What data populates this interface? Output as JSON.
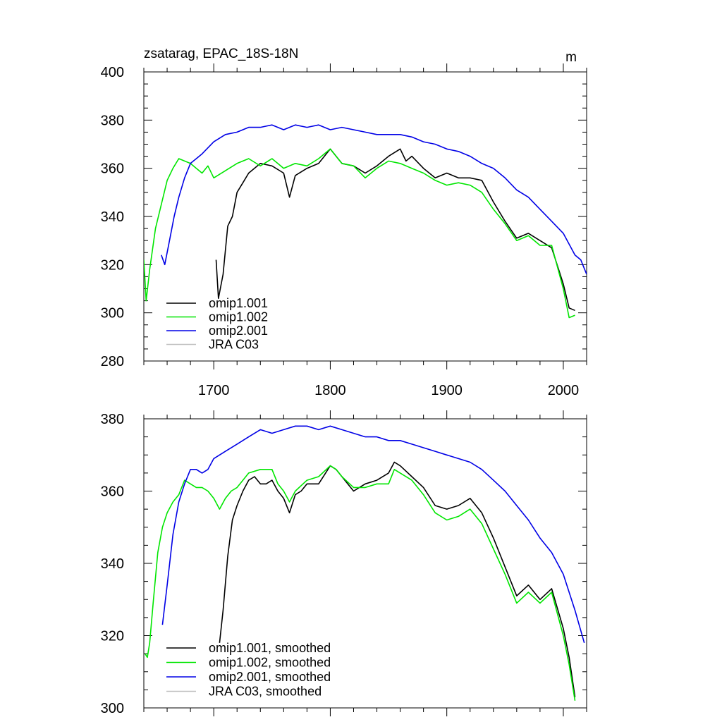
{
  "chart_data": [
    {
      "type": "line",
      "title": "zsatarag, EPAC_18S-18N",
      "units": "m",
      "xlim": [
        1640,
        2020
      ],
      "ylim": [
        280,
        400
      ],
      "x_ticks": [
        1700,
        1800,
        1900,
        2000
      ],
      "x_tick_labels": [
        "1700",
        "1800",
        "1900",
        "2000"
      ],
      "y_ticks": [
        280,
        300,
        320,
        340,
        360,
        380,
        400
      ],
      "y_tick_labels": [
        "280",
        "300",
        "320",
        "340",
        "360",
        "380",
        "400"
      ],
      "legend_position": "bottom-left",
      "series": [
        {
          "name": "omip1.001",
          "color": "#000000",
          "x": [
            1702,
            1704,
            1708,
            1712,
            1716,
            1720,
            1725,
            1730,
            1740,
            1750,
            1760,
            1765,
            1770,
            1780,
            1790,
            1800,
            1810,
            1820,
            1830,
            1840,
            1850,
            1860,
            1865,
            1870,
            1880,
            1890,
            1900,
            1910,
            1920,
            1930,
            1940,
            1950,
            1960,
            1970,
            1980,
            1990,
            2000,
            2005,
            2010
          ],
          "y": [
            322,
            306,
            316,
            336,
            340,
            350,
            354,
            358,
            362,
            361,
            358,
            348,
            357,
            360,
            362,
            368,
            362,
            361,
            358,
            361,
            365,
            368,
            363,
            365,
            360,
            356,
            358,
            356,
            356,
            355,
            346,
            338,
            331,
            333,
            330,
            327,
            312,
            302,
            301
          ]
        },
        {
          "name": "omip1.002",
          "color": "#00e600",
          "x": [
            1640,
            1642,
            1645,
            1650,
            1655,
            1660,
            1665,
            1670,
            1675,
            1680,
            1685,
            1690,
            1695,
            1700,
            1710,
            1720,
            1730,
            1740,
            1750,
            1760,
            1770,
            1780,
            1790,
            1800,
            1810,
            1820,
            1830,
            1840,
            1850,
            1860,
            1870,
            1880,
            1890,
            1900,
            1910,
            1920,
            1930,
            1940,
            1950,
            1960,
            1970,
            1980,
            1990,
            2000,
            2005,
            2010
          ],
          "y": [
            322,
            305,
            318,
            335,
            345,
            355,
            360,
            364,
            363,
            362,
            360,
            358,
            361,
            356,
            359,
            362,
            364,
            361,
            364,
            360,
            362,
            361,
            364,
            368,
            362,
            361,
            356,
            360,
            363,
            362,
            360,
            358,
            355,
            353,
            354,
            353,
            350,
            343,
            337,
            330,
            332,
            328,
            328,
            310,
            298,
            299
          ]
        },
        {
          "name": "omip2.001",
          "color": "#0000e6",
          "x": [
            1655,
            1658,
            1662,
            1666,
            1670,
            1675,
            1680,
            1685,
            1690,
            1700,
            1710,
            1720,
            1730,
            1740,
            1750,
            1760,
            1770,
            1780,
            1790,
            1800,
            1810,
            1820,
            1830,
            1840,
            1850,
            1860,
            1870,
            1880,
            1890,
            1900,
            1910,
            1920,
            1930,
            1940,
            1950,
            1960,
            1970,
            1980,
            1990,
            2000,
            2010,
            2015,
            2020
          ],
          "y": [
            324,
            320,
            330,
            340,
            348,
            356,
            362,
            364,
            366,
            371,
            374,
            375,
            377,
            377,
            378,
            376,
            378,
            377,
            378,
            376,
            377,
            376,
            375,
            374,
            374,
            374,
            373,
            371,
            370,
            368,
            367,
            365,
            362,
            360,
            356,
            351,
            348,
            343,
            338,
            333,
            324,
            322,
            316
          ]
        },
        {
          "name": "JRA C03",
          "color": "#c0c0c0",
          "x": [],
          "y": []
        }
      ]
    },
    {
      "type": "line",
      "title": "",
      "xlim": [
        1640,
        2020
      ],
      "ylim": [
        300,
        380
      ],
      "y_ticks": [
        300,
        320,
        340,
        360,
        380
      ],
      "y_tick_labels": [
        "300",
        "320",
        "340",
        "360",
        "380"
      ],
      "legend_position": "bottom-left",
      "series": [
        {
          "name": "omip1.001, smoothed",
          "color": "#000000",
          "x": [
            1705,
            1708,
            1712,
            1716,
            1720,
            1725,
            1730,
            1735,
            1740,
            1745,
            1750,
            1755,
            1760,
            1765,
            1770,
            1775,
            1780,
            1790,
            1800,
            1805,
            1810,
            1820,
            1830,
            1840,
            1850,
            1855,
            1860,
            1870,
            1880,
            1890,
            1900,
            1910,
            1920,
            1930,
            1940,
            1950,
            1960,
            1970,
            1980,
            1990,
            2000,
            2005,
            2010
          ],
          "y": [
            318,
            327,
            342,
            352,
            356,
            360,
            363,
            364,
            362,
            362,
            363,
            360,
            358,
            354,
            359,
            360,
            362,
            362,
            367,
            366,
            364,
            360,
            362,
            363,
            365,
            368,
            367,
            364,
            361,
            356,
            355,
            356,
            358,
            354,
            347,
            339,
            331,
            334,
            330,
            333,
            322,
            314,
            303
          ]
        },
        {
          "name": "omip1.002, smoothed",
          "color": "#00e600",
          "x": [
            1641,
            1643,
            1645,
            1648,
            1652,
            1656,
            1660,
            1665,
            1670,
            1675,
            1680,
            1685,
            1690,
            1695,
            1700,
            1705,
            1710,
            1715,
            1720,
            1725,
            1730,
            1740,
            1750,
            1755,
            1760,
            1765,
            1770,
            1780,
            1790,
            1800,
            1805,
            1810,
            1820,
            1830,
            1840,
            1850,
            1855,
            1860,
            1870,
            1880,
            1890,
            1900,
            1910,
            1920,
            1930,
            1940,
            1950,
            1960,
            1970,
            1980,
            1990,
            2000,
            2005,
            2010
          ],
          "y": [
            315,
            314,
            318,
            329,
            343,
            350,
            354,
            357,
            359,
            363,
            362,
            361,
            361,
            360,
            358,
            355,
            358,
            360,
            361,
            363,
            365,
            366,
            366,
            362,
            360,
            357,
            360,
            363,
            364,
            367,
            366,
            364,
            361,
            361,
            362,
            362,
            366,
            365,
            363,
            359,
            354,
            352,
            353,
            355,
            351,
            344,
            337,
            329,
            332,
            329,
            332,
            320,
            312,
            302
          ]
        },
        {
          "name": "omip2.001, smoothed",
          "color": "#0000e6",
          "x": [
            1656,
            1660,
            1665,
            1670,
            1675,
            1680,
            1685,
            1690,
            1695,
            1700,
            1710,
            1720,
            1730,
            1740,
            1750,
            1760,
            1770,
            1780,
            1790,
            1800,
            1810,
            1820,
            1830,
            1840,
            1850,
            1860,
            1870,
            1880,
            1890,
            1900,
            1910,
            1920,
            1930,
            1940,
            1950,
            1960,
            1970,
            1980,
            1990,
            2000,
            2010,
            2018
          ],
          "y": [
            323,
            334,
            348,
            357,
            362,
            366,
            366,
            365,
            366,
            369,
            371,
            373,
            375,
            377,
            376,
            377,
            378,
            378,
            377,
            378,
            377,
            376,
            375,
            375,
            374,
            374,
            373,
            372,
            371,
            370,
            369,
            368,
            366,
            363,
            360,
            356,
            352,
            347,
            343,
            337,
            327,
            318
          ]
        },
        {
          "name": "JRA C03, smoothed",
          "color": "#c0c0c0",
          "x": [],
          "y": []
        }
      ]
    }
  ]
}
